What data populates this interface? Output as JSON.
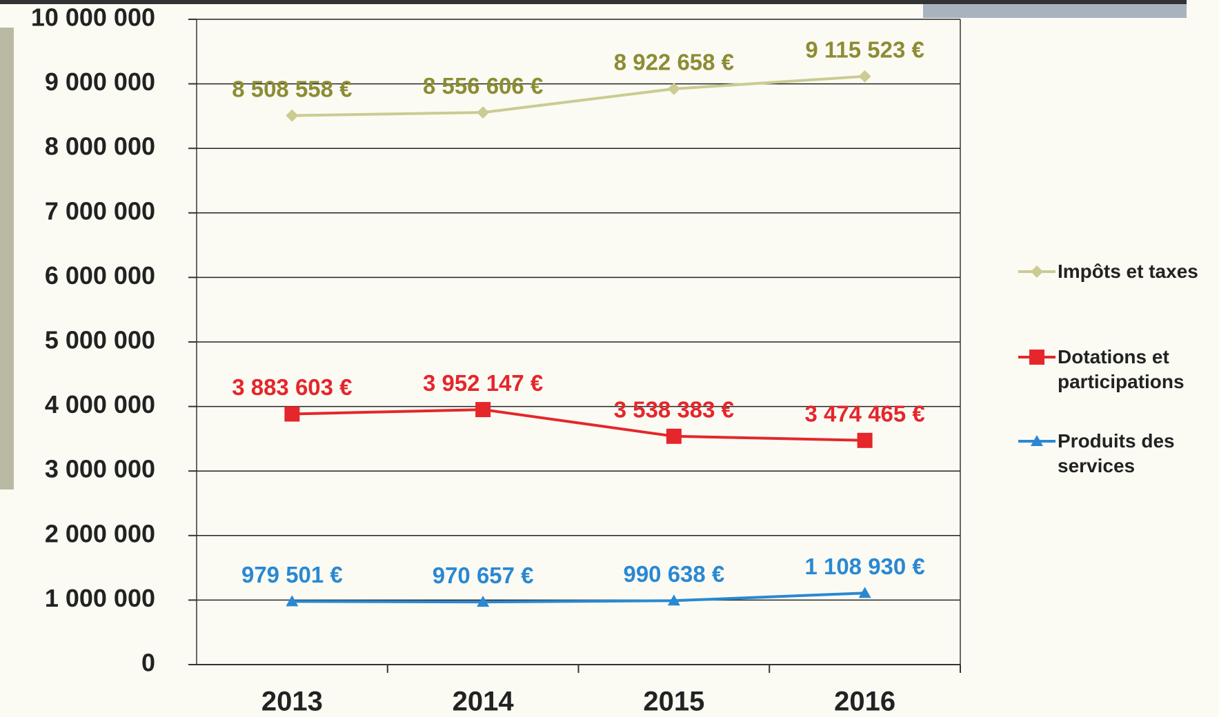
{
  "chart_data": {
    "type": "line",
    "categories": [
      "2013",
      "2014",
      "2015",
      "2016"
    ],
    "series": [
      {
        "name": "Impôts et taxes",
        "color": "#cbcb93",
        "label_color": "#8c8c34",
        "marker": "diamond",
        "values": [
          8508558,
          8556606,
          8922658,
          9115523
        ],
        "value_labels": [
          "8 508 558 €",
          "8 556 606 €",
          "8 922 658 €",
          "9 115 523 €"
        ]
      },
      {
        "name": "Dotations et participations",
        "color": "#e5262b",
        "label_color": "#e5262b",
        "marker": "square",
        "values": [
          3883603,
          3952147,
          3538383,
          3474465
        ],
        "value_labels": [
          "3 883 603 €",
          "3 952 147 €",
          "3 538 383 €",
          "3 474 465 €"
        ]
      },
      {
        "name": "Produits des services",
        "color": "#2a88d2",
        "label_color": "#2a88d2",
        "marker": "triangle",
        "values": [
          979501,
          970657,
          990638,
          1108930
        ],
        "value_labels": [
          "979 501 €",
          "970 657 €",
          "990 638 €",
          "1 108 930 €"
        ]
      }
    ],
    "ylim": [
      0,
      10000000
    ],
    "yticks": [
      0,
      {
        "value": 1000000,
        "label": "1 000 000"
      },
      {
        "value": 2000000,
        "label": "2 000 000"
      },
      {
        "value": 3000000,
        "label": "3 000 000"
      },
      {
        "value": 4000000,
        "label": "4 000 000"
      },
      {
        "value": 5000000,
        "label": "5 000 000"
      },
      {
        "value": 6000000,
        "label": "6 000 000"
      },
      {
        "value": 7000000,
        "label": "7 000 000"
      },
      {
        "value": 8000000,
        "label": "8 000 000"
      },
      {
        "value": 9000000,
        "label": "9 000 000"
      },
      {
        "value": 10000000,
        "label": "10 000 000"
      }
    ],
    "grid": true,
    "legend": "right"
  }
}
